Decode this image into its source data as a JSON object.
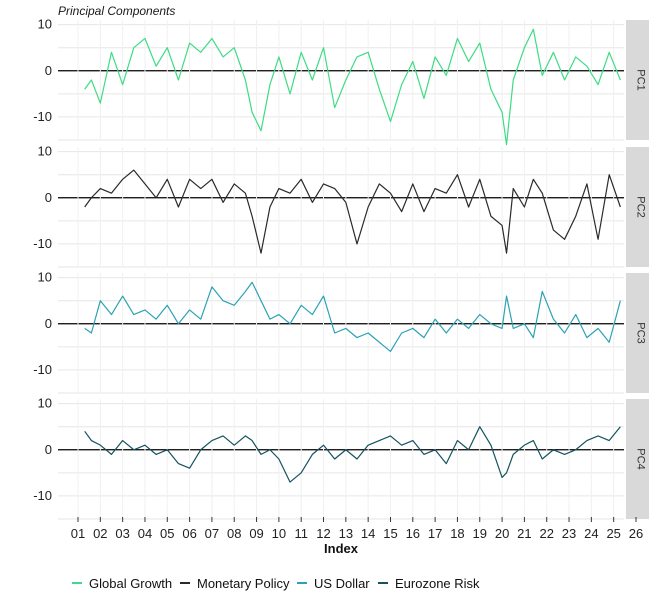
{
  "chart_data": {
    "type": "line",
    "title": "Principal Components",
    "xlabel": "Index",
    "x_ticks": [
      "01",
      "02",
      "03",
      "04",
      "05",
      "06",
      "07",
      "08",
      "09",
      "10",
      "11",
      "12",
      "13",
      "14",
      "15",
      "16",
      "17",
      "18",
      "19",
      "20",
      "21",
      "22",
      "23",
      "24",
      "25",
      "26"
    ],
    "xlim": [
      2001,
      2026
    ],
    "ylim": [
      -15,
      11
    ],
    "y_ticks": [
      10,
      0,
      -10
    ],
    "grid": true,
    "legend_position": "bottom",
    "panels": [
      {
        "label": "PC1",
        "series_name": "Global Growth",
        "color": "#3ddc84",
        "x": [
          2001.3,
          2001.6,
          2002.0,
          2002.5,
          2003.0,
          2003.5,
          2004.0,
          2004.5,
          2005.0,
          2005.5,
          2006.0,
          2006.5,
          2007.0,
          2007.5,
          2008.0,
          2008.5,
          2008.8,
          2009.2,
          2009.6,
          2010.0,
          2010.5,
          2011.0,
          2011.5,
          2012.0,
          2012.5,
          2013.0,
          2013.5,
          2014.0,
          2014.5,
          2015.0,
          2015.5,
          2016.0,
          2016.5,
          2017.0,
          2017.5,
          2018.0,
          2018.5,
          2019.0,
          2019.5,
          2020.0,
          2020.2,
          2020.5,
          2021.0,
          2021.4,
          2021.8,
          2022.3,
          2022.8,
          2023.3,
          2023.8,
          2024.3,
          2024.8,
          2025.3
        ],
        "values": [
          -4,
          -2,
          -7,
          4,
          -3,
          5,
          7,
          1,
          5,
          -2,
          6,
          4,
          7,
          3,
          5,
          -2,
          -9,
          -13,
          -3,
          3,
          -5,
          4,
          -2,
          5,
          -8,
          -2,
          3,
          4,
          -4,
          -11,
          -3,
          2,
          -6,
          3,
          -1,
          7,
          2,
          6,
          -4,
          -9,
          -16,
          -2,
          5,
          9,
          -1,
          4,
          -2,
          3,
          1,
          -3,
          4,
          -2
        ]
      },
      {
        "label": "PC2",
        "series_name": "Monetary Policy",
        "color": "#2a2a2a",
        "x": [
          2001.3,
          2001.6,
          2002.0,
          2002.5,
          2003.0,
          2003.5,
          2004.0,
          2004.5,
          2005.0,
          2005.5,
          2006.0,
          2006.5,
          2007.0,
          2007.5,
          2008.0,
          2008.5,
          2008.8,
          2009.2,
          2009.6,
          2010.0,
          2010.5,
          2011.0,
          2011.5,
          2012.0,
          2012.5,
          2013.0,
          2013.5,
          2014.0,
          2014.5,
          2015.0,
          2015.5,
          2016.0,
          2016.5,
          2017.0,
          2017.5,
          2018.0,
          2018.5,
          2019.0,
          2019.5,
          2020.0,
          2020.2,
          2020.5,
          2021.0,
          2021.4,
          2021.8,
          2022.3,
          2022.8,
          2023.3,
          2023.8,
          2024.3,
          2024.8,
          2025.3
        ],
        "values": [
          -2,
          0,
          2,
          1,
          4,
          6,
          3,
          0,
          4,
          -2,
          4,
          2,
          4,
          -1,
          3,
          1,
          -4,
          -12,
          -2,
          2,
          1,
          4,
          -1,
          3,
          2,
          -1,
          -10,
          -2,
          3,
          1,
          -3,
          3,
          -3,
          2,
          1,
          5,
          -2,
          4,
          -4,
          -6,
          -12,
          2,
          -2,
          4,
          1,
          -7,
          -9,
          -4,
          3,
          -9,
          5,
          -2
        ]
      },
      {
        "label": "PC3",
        "series_name": "US Dollar",
        "color": "#2aa3b4",
        "x": [
          2001.3,
          2001.6,
          2002.0,
          2002.5,
          2003.0,
          2003.5,
          2004.0,
          2004.5,
          2005.0,
          2005.5,
          2006.0,
          2006.5,
          2007.0,
          2007.5,
          2008.0,
          2008.5,
          2008.8,
          2009.2,
          2009.6,
          2010.0,
          2010.5,
          2011.0,
          2011.5,
          2012.0,
          2012.5,
          2013.0,
          2013.5,
          2014.0,
          2014.5,
          2015.0,
          2015.5,
          2016.0,
          2016.5,
          2017.0,
          2017.5,
          2018.0,
          2018.5,
          2019.0,
          2019.5,
          2020.0,
          2020.2,
          2020.5,
          2021.0,
          2021.4,
          2021.8,
          2022.3,
          2022.8,
          2023.3,
          2023.8,
          2024.3,
          2024.8,
          2025.3
        ],
        "values": [
          -1,
          -2,
          5,
          2,
          6,
          2,
          3,
          1,
          4,
          0,
          3,
          1,
          8,
          5,
          4,
          7,
          9,
          5,
          1,
          2,
          0,
          4,
          2,
          6,
          -2,
          -1,
          -3,
          -2,
          -4,
          -6,
          -2,
          -1,
          -3,
          1,
          -2,
          1,
          -1,
          2,
          0,
          -1,
          6,
          -1,
          0,
          -3,
          7,
          1,
          -2,
          2,
          -3,
          -1,
          -4,
          5
        ]
      },
      {
        "label": "PC4",
        "series_name": "Eurozone Risk",
        "color": "#14535f",
        "x": [
          2001.3,
          2001.6,
          2002.0,
          2002.5,
          2003.0,
          2003.5,
          2004.0,
          2004.5,
          2005.0,
          2005.5,
          2006.0,
          2006.5,
          2007.0,
          2007.5,
          2008.0,
          2008.5,
          2008.8,
          2009.2,
          2009.6,
          2010.0,
          2010.5,
          2011.0,
          2011.5,
          2012.0,
          2012.5,
          2013.0,
          2013.5,
          2014.0,
          2014.5,
          2015.0,
          2015.5,
          2016.0,
          2016.5,
          2017.0,
          2017.5,
          2018.0,
          2018.5,
          2019.0,
          2019.5,
          2020.0,
          2020.2,
          2020.5,
          2021.0,
          2021.4,
          2021.8,
          2022.3,
          2022.8,
          2023.3,
          2023.8,
          2024.3,
          2024.8,
          2025.3
        ],
        "values": [
          4,
          2,
          1,
          -1,
          2,
          0,
          1,
          -1,
          0,
          -3,
          -4,
          0,
          2,
          3,
          1,
          3,
          2,
          -1,
          0,
          -2,
          -7,
          -5,
          -1,
          1,
          -2,
          0,
          -2,
          1,
          2,
          3,
          1,
          2,
          -1,
          0,
          -3,
          2,
          0,
          5,
          1,
          -6,
          -5,
          -1,
          1,
          2,
          -2,
          0,
          -1,
          0,
          2,
          3,
          2,
          5
        ]
      }
    ]
  },
  "legend": {
    "items": [
      {
        "label": "Global Growth",
        "color": "#3ddc84"
      },
      {
        "label": "Monetary Policy",
        "color": "#2a2a2a"
      },
      {
        "label": "US Dollar",
        "color": "#2aa3b4"
      },
      {
        "label": "Eurozone Risk",
        "color": "#14535f"
      }
    ]
  }
}
